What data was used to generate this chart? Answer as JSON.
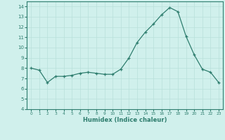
{
  "x": [
    0,
    1,
    2,
    3,
    4,
    5,
    6,
    7,
    8,
    9,
    10,
    11,
    12,
    13,
    14,
    15,
    16,
    17,
    18,
    19,
    20,
    21,
    22,
    23
  ],
  "y": [
    8.0,
    7.8,
    6.6,
    7.2,
    7.2,
    7.3,
    7.5,
    7.6,
    7.5,
    7.4,
    7.4,
    7.9,
    9.0,
    10.5,
    11.5,
    12.3,
    13.2,
    13.9,
    13.5,
    11.1,
    9.3,
    7.9,
    7.6,
    6.6
  ],
  "xlabel": "Humidex (Indice chaleur)",
  "xlim": [
    -0.5,
    23.5
  ],
  "ylim": [
    4,
    14.5
  ],
  "yticks": [
    4,
    5,
    6,
    7,
    8,
    9,
    10,
    11,
    12,
    13,
    14
  ],
  "xticks": [
    0,
    1,
    2,
    3,
    4,
    5,
    6,
    7,
    8,
    9,
    10,
    11,
    12,
    13,
    14,
    15,
    16,
    17,
    18,
    19,
    20,
    21,
    22,
    23
  ],
  "line_color": "#2e7d6e",
  "marker": "+",
  "bg_color": "#d0f0ec",
  "grid_color": "#b8e0da",
  "xlabel_color": "#2e7d6e",
  "tick_color": "#2e7d6e",
  "spine_color": "#2e7d6e"
}
